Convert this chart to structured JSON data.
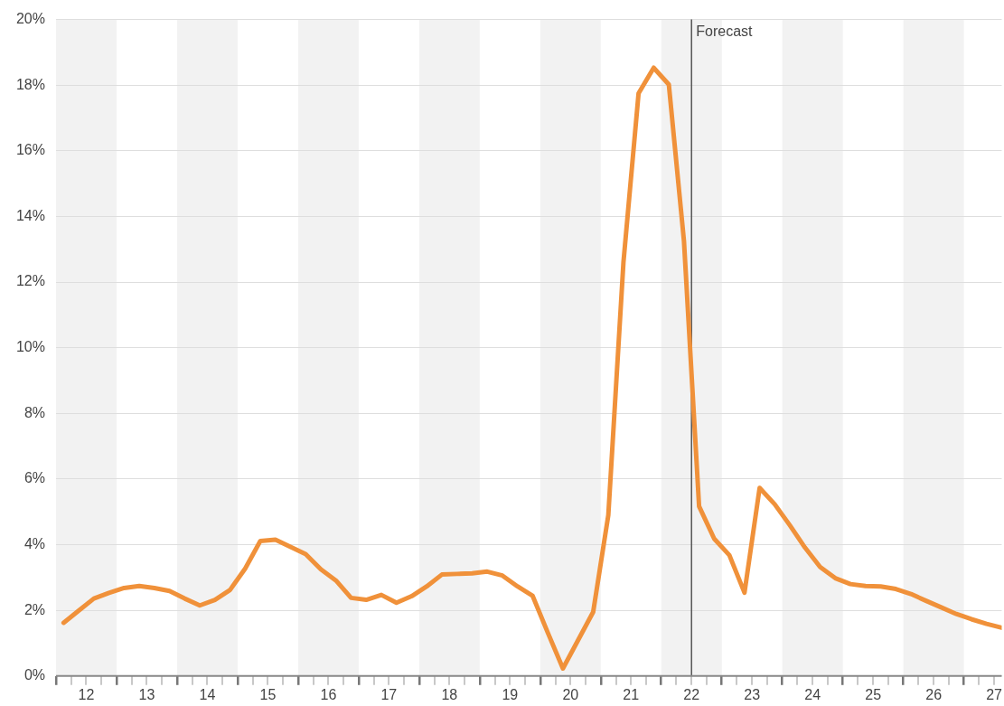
{
  "chart_data": {
    "type": "line",
    "x": [
      12.125,
      12.375,
      12.625,
      12.875,
      13.125,
      13.375,
      13.625,
      13.875,
      14.125,
      14.375,
      14.625,
      14.875,
      15.125,
      15.375,
      15.625,
      15.875,
      16.125,
      16.375,
      16.625,
      16.875,
      17.125,
      17.375,
      17.625,
      17.875,
      18.125,
      18.375,
      18.625,
      18.875,
      19.125,
      19.375,
      19.625,
      19.875,
      20.125,
      20.375,
      20.625,
      20.875,
      21.125,
      21.375,
      21.625,
      21.875,
      22.125,
      22.375,
      22.625,
      22.875,
      23.125,
      23.375,
      23.625,
      23.875,
      24.125,
      24.375,
      24.625,
      24.875,
      25.125,
      25.375,
      25.625,
      25.875,
      26.125,
      26.375,
      26.625,
      26.875,
      27.125,
      27.375,
      27.625
    ],
    "series": [
      {
        "color": "#f0913a",
        "values": [
          1.62,
          1.99,
          2.36,
          2.53,
          2.68,
          2.74,
          2.68,
          2.59,
          2.36,
          2.15,
          2.32,
          2.62,
          3.27,
          4.11,
          4.15,
          3.93,
          3.71,
          3.25,
          2.91,
          2.38,
          2.32,
          2.47,
          2.23,
          2.43,
          2.73,
          3.09,
          3.11,
          3.13,
          3.18,
          3.06,
          2.73,
          2.44,
          1.32,
          0.23,
          1.09,
          1.95,
          4.9,
          12.6,
          17.75,
          18.53,
          18.02,
          13.25,
          5.17,
          4.18,
          3.68,
          2.54,
          5.73,
          5.23,
          4.59,
          3.91,
          3.32,
          2.98,
          2.8,
          2.74,
          2.73,
          2.65,
          2.5,
          2.29,
          2.09,
          1.89,
          1.73,
          1.59,
          1.47
        ]
      }
    ],
    "xlim": [
      12,
      27.625
    ],
    "xticks": [
      {
        "value": 12,
        "label": null
      },
      {
        "value": 12.25,
        "label": null
      },
      {
        "value": 12.5,
        "label": "12"
      },
      {
        "value": 12.75,
        "label": null
      },
      {
        "value": 13,
        "label": null
      },
      {
        "value": 13.25,
        "label": null
      },
      {
        "value": 13.5,
        "label": "13"
      },
      {
        "value": 13.75,
        "label": null
      },
      {
        "value": 14,
        "label": null
      },
      {
        "value": 14.25,
        "label": null
      },
      {
        "value": 14.5,
        "label": "14"
      },
      {
        "value": 14.75,
        "label": null
      },
      {
        "value": 15,
        "label": null
      },
      {
        "value": 15.25,
        "label": null
      },
      {
        "value": 15.5,
        "label": "15"
      },
      {
        "value": 15.75,
        "label": null
      },
      {
        "value": 16,
        "label": null
      },
      {
        "value": 16.25,
        "label": null
      },
      {
        "value": 16.5,
        "label": "16"
      },
      {
        "value": 16.75,
        "label": null
      },
      {
        "value": 17,
        "label": null
      },
      {
        "value": 17.25,
        "label": null
      },
      {
        "value": 17.5,
        "label": "17"
      },
      {
        "value": 17.75,
        "label": null
      },
      {
        "value": 18,
        "label": null
      },
      {
        "value": 18.25,
        "label": null
      },
      {
        "value": 18.5,
        "label": "18"
      },
      {
        "value": 18.75,
        "label": null
      },
      {
        "value": 19,
        "label": null
      },
      {
        "value": 19.25,
        "label": null
      },
      {
        "value": 19.5,
        "label": "19"
      },
      {
        "value": 19.75,
        "label": null
      },
      {
        "value": 20,
        "label": null
      },
      {
        "value": 20.25,
        "label": null
      },
      {
        "value": 20.5,
        "label": "20"
      },
      {
        "value": 20.75,
        "label": null
      },
      {
        "value": 21,
        "label": null
      },
      {
        "value": 21.25,
        "label": null
      },
      {
        "value": 21.5,
        "label": "21"
      },
      {
        "value": 21.75,
        "label": null
      },
      {
        "value": 22,
        "label": null
      },
      {
        "value": 22.25,
        "label": null
      },
      {
        "value": 22.5,
        "label": "22"
      },
      {
        "value": 22.75,
        "label": null
      },
      {
        "value": 23,
        "label": null
      },
      {
        "value": 23.25,
        "label": null
      },
      {
        "value": 23.5,
        "label": "23"
      },
      {
        "value": 23.75,
        "label": null
      },
      {
        "value": 24,
        "label": null
      },
      {
        "value": 24.25,
        "label": null
      },
      {
        "value": 24.5,
        "label": "24"
      },
      {
        "value": 24.75,
        "label": null
      },
      {
        "value": 25,
        "label": null
      },
      {
        "value": 25.25,
        "label": null
      },
      {
        "value": 25.5,
        "label": "25"
      },
      {
        "value": 25.75,
        "label": null
      },
      {
        "value": 26,
        "label": null
      },
      {
        "value": 26.25,
        "label": null
      },
      {
        "value": 26.5,
        "label": "26"
      },
      {
        "value": 26.75,
        "label": null
      },
      {
        "value": 27,
        "label": null
      },
      {
        "value": 27.25,
        "label": null
      },
      {
        "value": 27.5,
        "label": "27"
      }
    ],
    "ylim": [
      0,
      20
    ],
    "yticks": [
      {
        "value": 0,
        "label": "0%"
      },
      {
        "value": 2,
        "label": "2%"
      },
      {
        "value": 4,
        "label": "4%"
      },
      {
        "value": 6,
        "label": "6%"
      },
      {
        "value": 8,
        "label": "8%"
      },
      {
        "value": 10,
        "label": "10%"
      },
      {
        "value": 12,
        "label": "12%"
      },
      {
        "value": 14,
        "label": "14%"
      },
      {
        "value": 16,
        "label": "16%"
      },
      {
        "value": 18,
        "label": "18%"
      },
      {
        "value": 20,
        "label": "20%"
      }
    ],
    "grid": "y",
    "legend": false,
    "bands": [
      {
        "axis": "x",
        "from": 12,
        "to": 13,
        "color": "#f2f2f2"
      },
      {
        "axis": "x",
        "from": 14,
        "to": 15,
        "color": "#f2f2f2"
      },
      {
        "axis": "x",
        "from": 16,
        "to": 17,
        "color": "#f2f2f2"
      },
      {
        "axis": "x",
        "from": 18,
        "to": 19,
        "color": "#f2f2f2"
      },
      {
        "axis": "x",
        "from": 20,
        "to": 21,
        "color": "#f2f2f2"
      },
      {
        "axis": "x",
        "from": 22,
        "to": 23,
        "color": "#f2f2f2"
      },
      {
        "axis": "x",
        "from": 24,
        "to": 25,
        "color": "#f2f2f2"
      },
      {
        "axis": "x",
        "from": 26,
        "to": 27,
        "color": "#f2f2f2"
      }
    ],
    "ref_lines": [
      {
        "axis": "x",
        "value": 22.5,
        "label": "Forecast",
        "color": "#555555"
      }
    ]
  }
}
